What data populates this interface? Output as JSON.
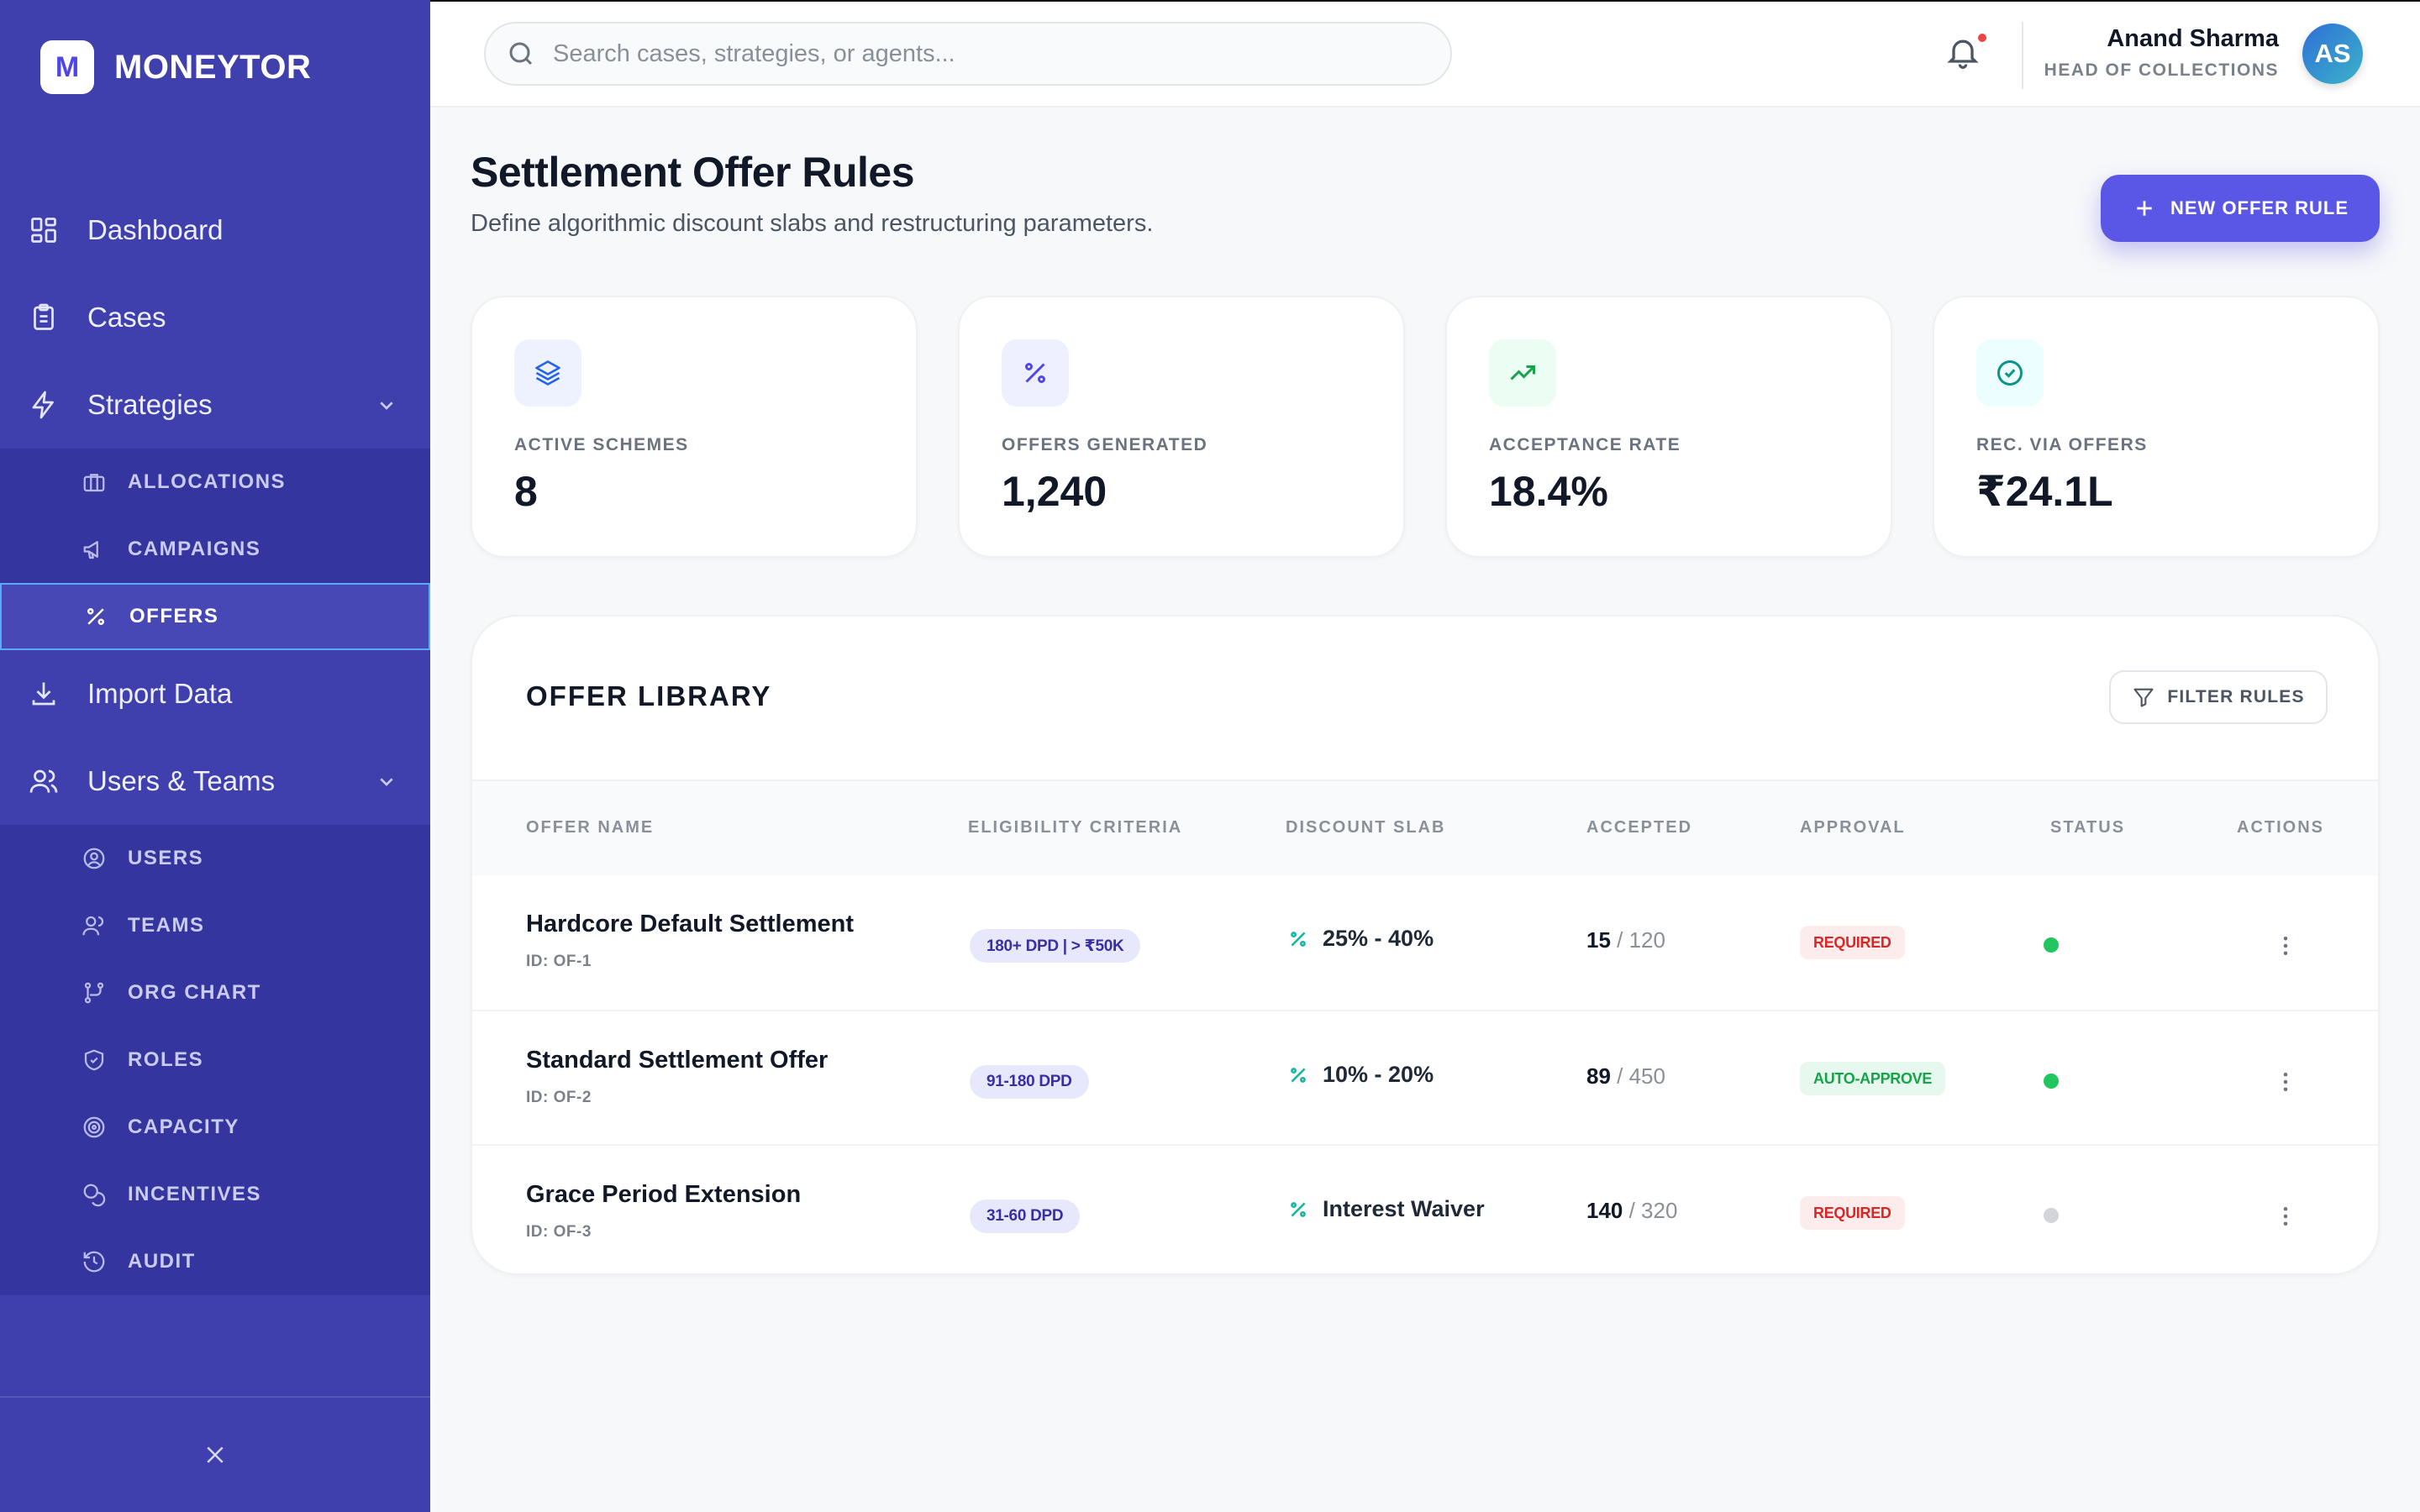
{
  "brand": {
    "logo_letter": "M",
    "name": "MONEYTOR"
  },
  "sidebar": {
    "items": [
      {
        "label": "Dashboard",
        "icon": "grid-icon"
      },
      {
        "label": "Cases",
        "icon": "clipboard-icon"
      },
      {
        "label": "Strategies",
        "icon": "bolt-icon",
        "expanded": true
      },
      {
        "label": "Import Data",
        "icon": "download-icon"
      },
      {
        "label": "Users & Teams",
        "icon": "users-icon",
        "expanded": true
      }
    ],
    "strategies_sub": [
      {
        "label": "ALLOCATIONS",
        "icon": "briefcase-icon"
      },
      {
        "label": "CAMPAIGNS",
        "icon": "megaphone-icon"
      },
      {
        "label": "OFFERS",
        "icon": "percent-icon",
        "active": true
      }
    ],
    "users_sub": [
      {
        "label": "USERS",
        "icon": "user-circle-icon"
      },
      {
        "label": "TEAMS",
        "icon": "team-icon"
      },
      {
        "label": "ORG CHART",
        "icon": "org-chart-icon"
      },
      {
        "label": "ROLES",
        "icon": "shield-icon"
      },
      {
        "label": "CAPACITY",
        "icon": "target-icon"
      },
      {
        "label": "INCENTIVES",
        "icon": "coins-icon"
      },
      {
        "label": "AUDIT",
        "icon": "history-icon"
      }
    ]
  },
  "header": {
    "search_placeholder": "Search cases, strategies, or agents...",
    "user_name": "Anand Sharma",
    "user_role": "HEAD OF COLLECTIONS",
    "avatar_initials": "AS"
  },
  "page": {
    "title": "Settlement Offer Rules",
    "subtitle": "Define algorithmic discount slabs and restructuring parameters.",
    "new_button": "NEW OFFER RULE"
  },
  "stats": [
    {
      "label": "ACTIVE SCHEMES",
      "value": "8",
      "icon": "layers-icon",
      "color": "#2563eb",
      "bg": "#eef2ff"
    },
    {
      "label": "OFFERS GENERATED",
      "value": "1,240",
      "icon": "percent-icon",
      "color": "#4f46e5",
      "bg": "#eef0ff"
    },
    {
      "label": "ACCEPTANCE RATE",
      "value": "18.4%",
      "icon": "trending-up-icon",
      "color": "#16a34a",
      "bg": "#ecfdf3"
    },
    {
      "label": "REC. VIA OFFERS",
      "value": "₹24.1L",
      "icon": "check-circle-icon",
      "color": "#0d9488",
      "bg": "#ecfeff"
    }
  ],
  "library": {
    "title": "OFFER LIBRARY",
    "filter_label": "FILTER RULES",
    "columns": [
      "OFFER NAME",
      "ELIGIBILITY CRITERIA",
      "DISCOUNT SLAB",
      "ACCEPTED",
      "APPROVAL",
      "STATUS",
      "ACTIONS"
    ],
    "rows": [
      {
        "name": "Hardcore Default Settlement",
        "id": "ID: OF-1",
        "criteria": "180+ DPD | > ₹50K",
        "discount": "25% - 40%",
        "accepted": "15",
        "total": " / 120",
        "approval": "REQUIRED",
        "approval_type": "req",
        "status_color": "#22c55e"
      },
      {
        "name": "Standard Settlement Offer",
        "id": "ID: OF-2",
        "criteria": "91-180 DPD",
        "discount": "10% - 20%",
        "accepted": "89",
        "total": " / 450",
        "approval": "AUTO-APPROVE",
        "approval_type": "auto",
        "status_color": "#22c55e"
      },
      {
        "name": "Grace Period Extension",
        "id": "ID: OF-3",
        "criteria": "31-60 DPD",
        "discount": "Interest Waiver",
        "accepted": "140",
        "total": " / 320",
        "approval": "REQUIRED",
        "approval_type": "req",
        "status_color": "#d1d5db"
      }
    ]
  },
  "colors": {
    "sidebar": "#3f3fae",
    "accent": "#5b57e6",
    "teal": "#14b8a6"
  }
}
